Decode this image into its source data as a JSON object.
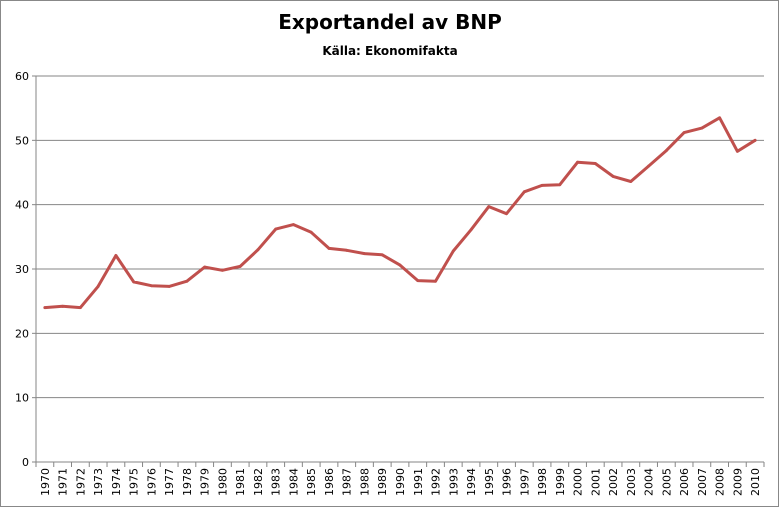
{
  "chart_data": {
    "type": "line",
    "title": "Exportandel av BNP",
    "subtitle": "Källa: Ekonomifakta",
    "xlabel": "",
    "ylabel": "",
    "ylim": [
      0,
      60
    ],
    "yticks": [
      "0",
      "10",
      "20",
      "30",
      "40",
      "50",
      "60"
    ],
    "grid": true,
    "legend": "none",
    "line_color": "#C0504D",
    "x": [
      "1970",
      "1971",
      "1972",
      "1973",
      "1974",
      "1975",
      "1976",
      "1977",
      "1978",
      "1979",
      "1980",
      "1981",
      "1982",
      "1983",
      "1984",
      "1985",
      "1986",
      "1987",
      "1988",
      "1989",
      "1990",
      "1991",
      "1992",
      "1993",
      "1994",
      "1995",
      "1996",
      "1997",
      "1998",
      "1999",
      "2000",
      "2001",
      "2002",
      "2003",
      "2004",
      "2005",
      "2006",
      "2007",
      "2008",
      "2009",
      "2010"
    ],
    "series": [
      {
        "values": [
          24.0,
          24.2,
          24.0,
          27.3,
          32.1,
          28.0,
          27.4,
          27.3,
          28.1,
          30.3,
          29.8,
          30.4,
          33.0,
          36.2,
          36.9,
          35.7,
          33.2,
          32.9,
          32.4,
          32.2,
          30.6,
          28.2,
          28.1,
          32.8,
          36.1,
          39.7,
          38.6,
          42.0,
          43.0,
          43.1,
          46.6,
          46.4,
          44.4,
          43.6,
          46.0,
          48.4,
          51.2,
          51.9,
          53.5,
          48.3,
          50.0
        ]
      }
    ]
  }
}
